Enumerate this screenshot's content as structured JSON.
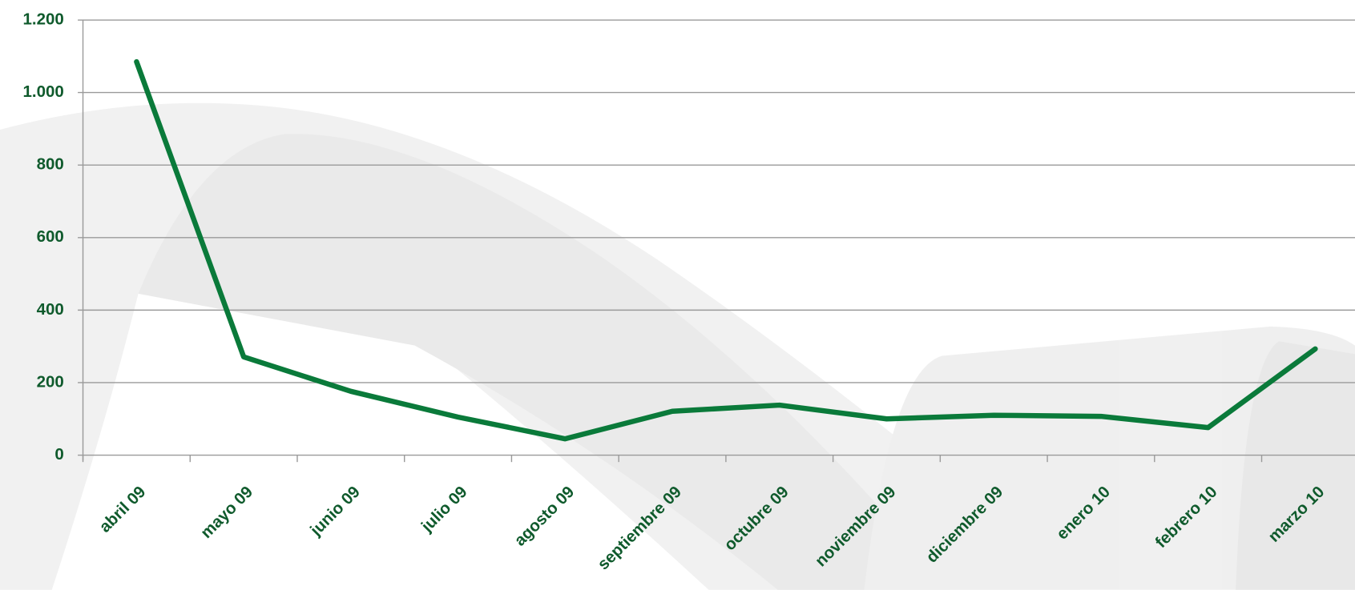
{
  "chart_data": {
    "type": "line",
    "categories": [
      "abril 09",
      "mayo 09",
      "junio 09",
      "julio 09",
      "agosto 09",
      "septiembre 09",
      "octubre 09",
      "noviembre 09",
      "diciembre 09",
      "enero 10",
      "febrero 10",
      "marzo 10"
    ],
    "series": [
      {
        "color": "#0a7a3a",
        "values": [
          1085,
          271,
          176,
          105,
          45,
          121,
          138,
          100,
          110,
          107,
          76,
          293
        ]
      }
    ],
    "ylim": [
      0,
      1200
    ],
    "yticks": [
      0,
      200,
      400,
      600,
      800,
      {
        "value": 1000,
        "label": "1.000"
      },
      {
        "value": 1200,
        "label": "1.200"
      }
    ],
    "grid": true
  }
}
